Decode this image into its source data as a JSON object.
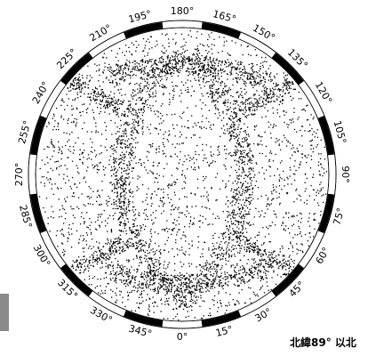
{
  "map": {
    "degree_labels": [
      "0°",
      "15°",
      "30°",
      "45°",
      "60°",
      "75°",
      "90°",
      "105°",
      "120°",
      "135°",
      "150°",
      "165°",
      "180°",
      "195°",
      "210°",
      "225°",
      "240°",
      "255°",
      "270°",
      "285°",
      "300°",
      "315°",
      "330°",
      "345°"
    ]
  },
  "caption": "北緯89° 以北"
}
